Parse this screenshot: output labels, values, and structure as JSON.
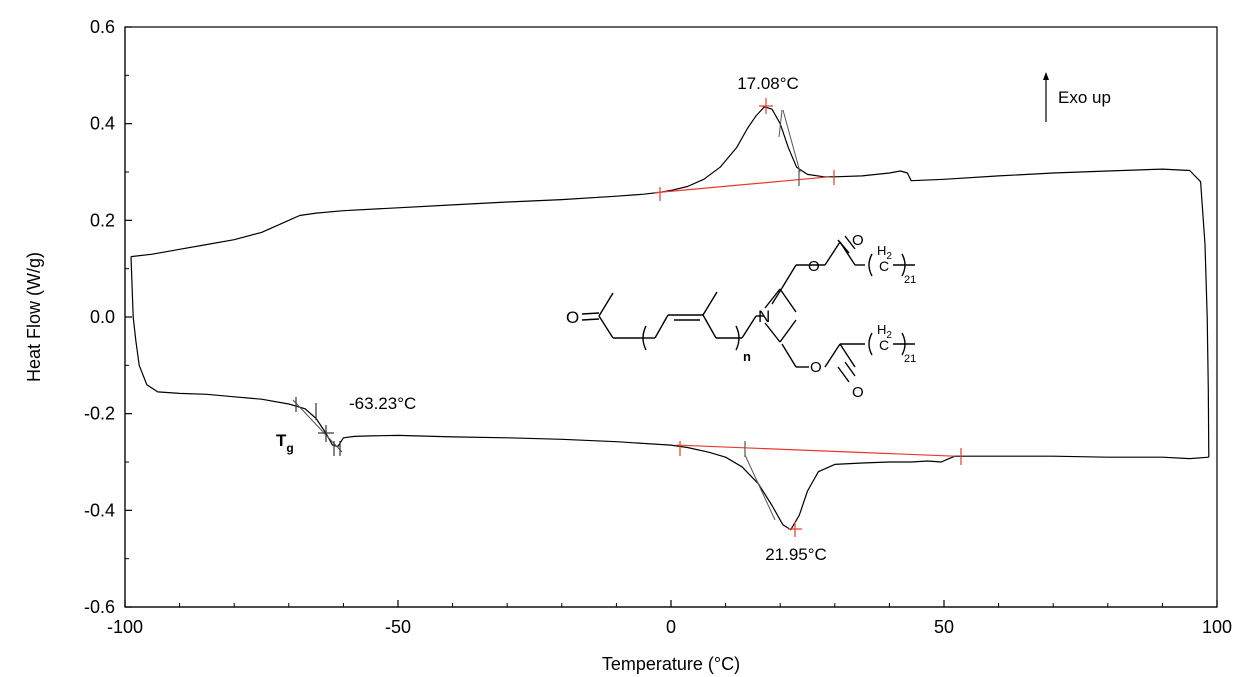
{
  "chart_data": {
    "type": "line",
    "title": "",
    "xlabel": "Temperature (°C)",
    "ylabel": "Heat Flow (W/g)",
    "xlim": [
      -100,
      100
    ],
    "ylim": [
      -0.6,
      0.6
    ],
    "x_ticks": [
      "-100",
      "-50",
      "0",
      "50",
      "100"
    ],
    "y_ticks": [
      "0.6",
      "0.4",
      "0.2",
      "0.0",
      "-0.2",
      "-0.4",
      "-0.6"
    ],
    "grid": false,
    "legend": "none",
    "series": [
      {
        "role": "heating",
        "points": [
          [
            -98.9,
            0.125
          ],
          [
            -95,
            0.13
          ],
          [
            -90,
            0.14
          ],
          [
            -85,
            0.15
          ],
          [
            -80,
            0.16
          ],
          [
            -75,
            0.175
          ],
          [
            -72,
            0.19
          ],
          [
            -70,
            0.2
          ],
          [
            -68,
            0.21
          ],
          [
            -65,
            0.215
          ],
          [
            -60,
            0.22
          ],
          [
            -50,
            0.226
          ],
          [
            -40,
            0.232
          ],
          [
            -30,
            0.238
          ],
          [
            -20,
            0.243
          ],
          [
            -10,
            0.25
          ],
          [
            -5,
            0.254
          ],
          [
            -2,
            0.258
          ],
          [
            0,
            0.262
          ],
          [
            3,
            0.27
          ],
          [
            6,
            0.285
          ],
          [
            9,
            0.31
          ],
          [
            12,
            0.35
          ],
          [
            14,
            0.39
          ],
          [
            15.5,
            0.415
          ],
          [
            17.08,
            0.435
          ],
          [
            18.5,
            0.43
          ],
          [
            20,
            0.4
          ],
          [
            21.5,
            0.35
          ],
          [
            23,
            0.31
          ],
          [
            25,
            0.295
          ],
          [
            28,
            0.29
          ],
          [
            30,
            0.29
          ],
          [
            35,
            0.292
          ],
          [
            40,
            0.298
          ],
          [
            42,
            0.302
          ],
          [
            43.3,
            0.298
          ],
          [
            44,
            0.282
          ],
          [
            50,
            0.285
          ],
          [
            60,
            0.292
          ],
          [
            70,
            0.298
          ],
          [
            80,
            0.302
          ],
          [
            90,
            0.306
          ],
          [
            95,
            0.303
          ],
          [
            97,
            0.28
          ],
          [
            97.8,
            0.15
          ],
          [
            98.2,
            0.0
          ],
          [
            98.4,
            -0.15
          ],
          [
            98.5,
            -0.29
          ]
        ]
      },
      {
        "role": "cooling",
        "points": [
          [
            98.5,
            -0.29
          ],
          [
            95,
            -0.293
          ],
          [
            90,
            -0.29
          ],
          [
            80,
            -0.29
          ],
          [
            70,
            -0.288
          ],
          [
            60,
            -0.288
          ],
          [
            52,
            -0.288
          ],
          [
            50.5,
            -0.295
          ],
          [
            49.5,
            -0.3
          ],
          [
            47,
            -0.298
          ],
          [
            44,
            -0.3
          ],
          [
            40,
            -0.3
          ],
          [
            35,
            -0.302
          ],
          [
            30,
            -0.305
          ],
          [
            27,
            -0.32
          ],
          [
            25,
            -0.36
          ],
          [
            23.5,
            -0.41
          ],
          [
            21.95,
            -0.44
          ],
          [
            20.5,
            -0.43
          ],
          [
            18.5,
            -0.39
          ],
          [
            16,
            -0.345
          ],
          [
            13,
            -0.31
          ],
          [
            10,
            -0.29
          ],
          [
            7,
            -0.28
          ],
          [
            3,
            -0.27
          ],
          [
            0,
            -0.265
          ],
          [
            -10,
            -0.258
          ],
          [
            -20,
            -0.253
          ],
          [
            -30,
            -0.25
          ],
          [
            -40,
            -0.248
          ],
          [
            -50,
            -0.245
          ],
          [
            -55,
            -0.246
          ],
          [
            -58,
            -0.247
          ],
          [
            -60,
            -0.25
          ],
          [
            -61,
            -0.268
          ],
          [
            -62,
            -0.265
          ],
          [
            -63.23,
            -0.24
          ],
          [
            -65,
            -0.21
          ],
          [
            -67,
            -0.19
          ],
          [
            -70,
            -0.18
          ],
          [
            -75,
            -0.17
          ],
          [
            -80,
            -0.165
          ],
          [
            -85,
            -0.16
          ],
          [
            -90,
            -0.158
          ],
          [
            -94,
            -0.155
          ],
          [
            -96,
            -0.14
          ],
          [
            -97.4,
            -0.1
          ],
          [
            -98,
            -0.05
          ],
          [
            -98.5,
            0.0
          ],
          [
            -98.9,
            0.125
          ]
        ]
      }
    ],
    "baselines": [
      {
        "role": "crystallization",
        "from": [
          -3,
          0.257
        ],
        "to": [
          29,
          0.29
        ]
      },
      {
        "role": "melting",
        "from": [
          1,
          -0.265
        ],
        "to": [
          52,
          -0.288
        ]
      }
    ],
    "annotations": [
      {
        "text": "17.08°C",
        "x": 17.08,
        "y": 0.435,
        "role": "exo-peak"
      },
      {
        "text": "21.95°C",
        "x": 21.95,
        "y": -0.44,
        "role": "endo-peak"
      },
      {
        "text": "-63.23°C",
        "x": -63.23,
        "y": -0.24,
        "role": "tg-value"
      },
      {
        "text": "T",
        "sub": "g",
        "role": "tg-label"
      },
      {
        "text": "Exo up",
        "role": "direction"
      }
    ],
    "structure": {
      "labels": {
        "o1": "O",
        "o2": "O",
        "o3": "O",
        "o4": "O",
        "o5": "O",
        "n": "N",
        "sub_n": "n",
        "h2": "H",
        "h2_sub": "2",
        "c": "C",
        "sub21": "21"
      }
    }
  },
  "colors": {
    "curve": "#000000",
    "baseline": "#e8392f",
    "marker": "#e8392f",
    "axis": "#000000",
    "tangent": "#555555"
  }
}
